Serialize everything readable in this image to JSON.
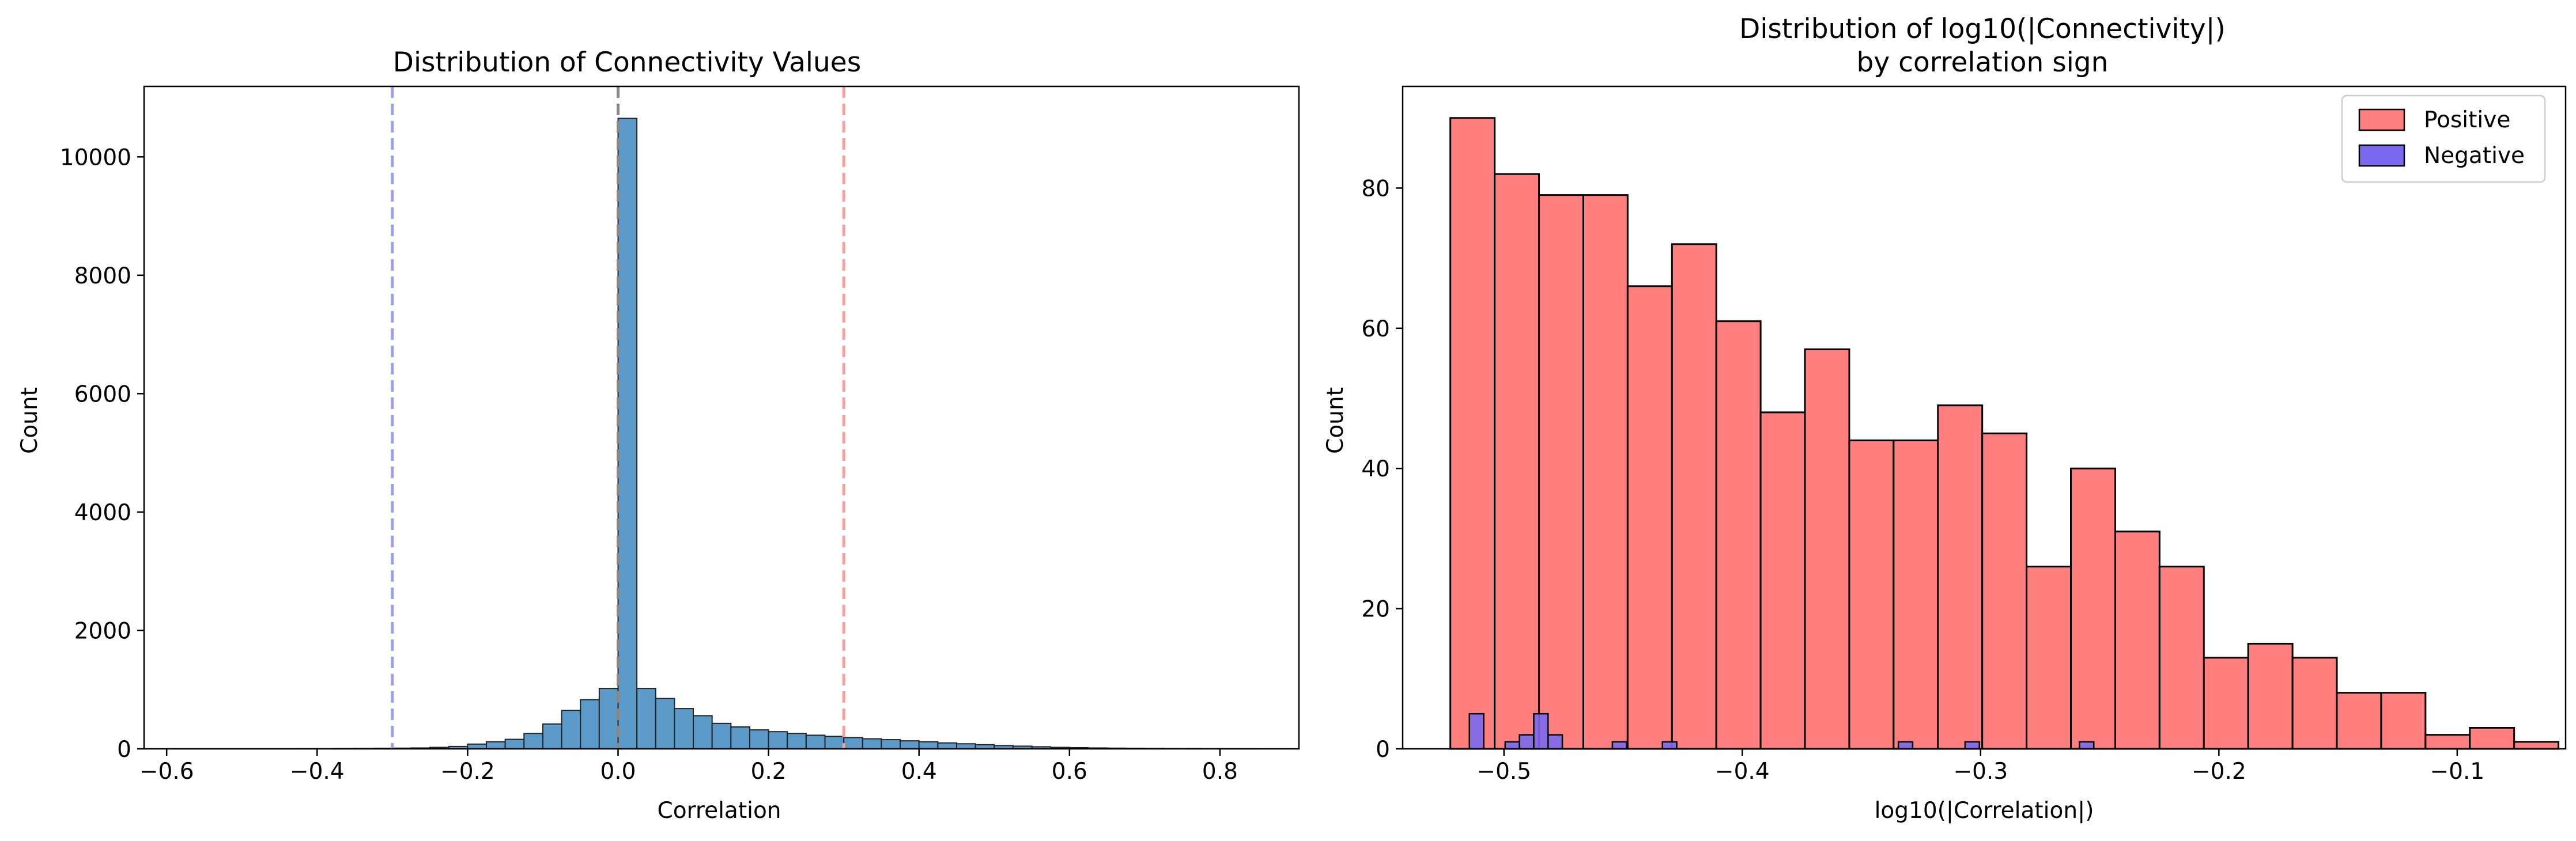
{
  "chart_data": [
    {
      "type": "histogram",
      "title": "Distribution of Connectivity Values",
      "xlabel": "Correlation",
      "ylabel": "Count",
      "xlim": [
        -0.63,
        0.905
      ],
      "ylim": [
        0,
        11190
      ],
      "xticks": [
        -0.6,
        -0.4,
        -0.2,
        0.0,
        0.2,
        0.4,
        0.6,
        0.8
      ],
      "xtick_labels": [
        "−0.6",
        "−0.4",
        "−0.2",
        "0.0",
        "0.2",
        "0.4",
        "0.6",
        "0.8"
      ],
      "yticks": [
        0,
        2000,
        4000,
        6000,
        8000,
        10000
      ],
      "ytick_labels": [
        "0",
        "2000",
        "4000",
        "6000",
        "8000",
        "10000"
      ],
      "grid": false,
      "bar_color": "#5b9ac9",
      "edge_color": "#222222",
      "bins": {
        "edges": [
          -0.6,
          -0.575,
          -0.55,
          -0.525,
          -0.5,
          -0.475,
          -0.45,
          -0.425,
          -0.4,
          -0.375,
          -0.35,
          -0.325,
          -0.3,
          -0.275,
          -0.25,
          -0.225,
          -0.2,
          -0.175,
          -0.15,
          -0.125,
          -0.1,
          -0.075,
          -0.05,
          -0.025,
          0.0,
          0.025,
          0.05,
          0.075,
          0.1,
          0.125,
          0.15,
          0.175,
          0.2,
          0.225,
          0.25,
          0.275,
          0.3,
          0.325,
          0.35,
          0.375,
          0.4,
          0.425,
          0.45,
          0.475,
          0.5,
          0.525,
          0.55,
          0.575,
          0.6,
          0.625,
          0.65,
          0.675,
          0.7,
          0.725,
          0.75,
          0.775,
          0.8,
          0.825,
          0.85
        ],
        "counts": [
          1,
          1,
          1,
          1,
          1,
          1,
          1,
          2,
          3,
          5,
          8,
          10,
          12,
          15,
          25,
          40,
          80,
          120,
          160,
          260,
          420,
          650,
          830,
          1020,
          10650,
          1020,
          850,
          680,
          560,
          430,
          370,
          320,
          290,
          260,
          230,
          210,
          190,
          170,
          155,
          135,
          120,
          100,
          85,
          70,
          55,
          45,
          35,
          25,
          20,
          15,
          12,
          10,
          8,
          6,
          5,
          3,
          2,
          1
        ]
      },
      "reference_lines": [
        {
          "x": -0.3,
          "color": "#9aa0ee",
          "style": "dashed"
        },
        {
          "x": 0.0,
          "color": "#888888",
          "style": "dashed"
        },
        {
          "x": 0.3,
          "color": "#f4a2a2",
          "style": "dashed"
        }
      ]
    },
    {
      "type": "histogram",
      "title": "Distribution of log10(|Connectivity|)\nby correlation sign",
      "title_lines": [
        "Distribution of log10(|Connectivity|)",
        "by correlation sign"
      ],
      "xlabel": "log10(|Correlation|)",
      "ylabel": "Count",
      "xlim": [
        -0.5425,
        -0.0545
      ],
      "ylim": [
        0,
        94.5
      ],
      "xticks": [
        -0.5,
        -0.4,
        -0.3,
        -0.2,
        -0.1
      ],
      "xtick_labels": [
        "−0.5",
        "−0.4",
        "−0.3",
        "−0.2",
        "−0.1"
      ],
      "yticks": [
        0,
        20,
        40,
        60,
        80
      ],
      "ytick_labels": [
        "0",
        "20",
        "40",
        "60",
        "80"
      ],
      "grid": false,
      "legend": {
        "position": "top-right",
        "entries": [
          "Positive",
          "Negative"
        ]
      },
      "series": [
        {
          "name": "Positive",
          "color": "#ff7f7f",
          "edge_color": "#000000",
          "bin_start": -0.5225,
          "bin_width": 0.0186,
          "counts": [
            90,
            82,
            79,
            79,
            66,
            72,
            61,
            48,
            57,
            44,
            44,
            49,
            45,
            26,
            40,
            31,
            26,
            13,
            15,
            13,
            8,
            8,
            2,
            3,
            1
          ]
        },
        {
          "name": "Negative",
          "color": "#7b68ee",
          "edge_color": "#000000",
          "bars": [
            {
              "x0": -0.5145,
              "x1": -0.5085,
              "count": 5
            },
            {
              "x0": -0.4995,
              "x1": -0.4935,
              "count": 1
            },
            {
              "x0": -0.4935,
              "x1": -0.4875,
              "count": 2
            },
            {
              "x0": -0.4875,
              "x1": -0.4815,
              "count": 5
            },
            {
              "x0": -0.4815,
              "x1": -0.4755,
              "count": 2
            },
            {
              "x0": -0.4545,
              "x1": -0.4485,
              "count": 1
            },
            {
              "x0": -0.4335,
              "x1": -0.4275,
              "count": 1
            },
            {
              "x0": -0.3345,
              "x1": -0.3285,
              "count": 1
            },
            {
              "x0": -0.3065,
              "x1": -0.3005,
              "count": 1
            },
            {
              "x0": -0.2585,
              "x1": -0.2525,
              "count": 1
            }
          ]
        }
      ]
    }
  ]
}
